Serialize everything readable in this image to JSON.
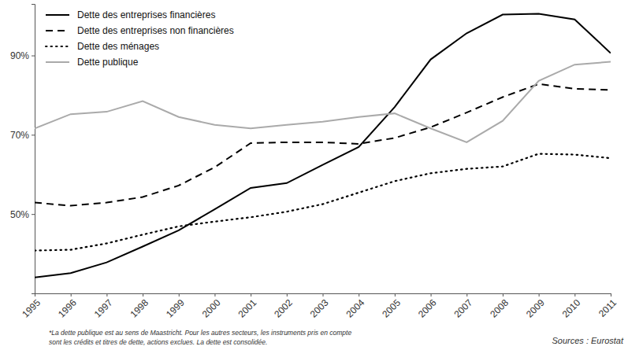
{
  "chart_data": {
    "type": "line",
    "x": [
      1995,
      1996,
      1997,
      1998,
      1999,
      2000,
      2001,
      2002,
      2003,
      2004,
      2005,
      2006,
      2007,
      2008,
      2009,
      2010,
      2011
    ],
    "xlim": [
      1995,
      2011
    ],
    "xticks": [
      1995,
      1996,
      1997,
      1998,
      1999,
      2000,
      2001,
      2002,
      2003,
      2004,
      2005,
      2006,
      2007,
      2008,
      2009,
      2010,
      2011
    ],
    "ylim": [
      30,
      103
    ],
    "yticks": [
      {
        "value": 50,
        "label": "50%"
      },
      {
        "value": 70,
        "label": "70%"
      },
      {
        "value": 90,
        "label": "90%"
      }
    ],
    "grid": false,
    "legend": "top-left",
    "series": [
      {
        "name": "Dette des entreprises financières",
        "color": "#000000",
        "line_style": "solid",
        "values": [
          34,
          35.1,
          37.8,
          41.8,
          45.9,
          51.2,
          56.6,
          57.8,
          62.4,
          66.9,
          77.0,
          89.0,
          95.6,
          100.3,
          100.5,
          99.1,
          90.6
        ]
      },
      {
        "name": "Dette des entreprises non financières",
        "color": "#000000",
        "line_style": "dashed",
        "values": [
          52.9,
          52.1,
          52.9,
          54.3,
          57.2,
          61.8,
          67.9,
          68.1,
          68.1,
          67.7,
          69.2,
          71.9,
          75.6,
          79.5,
          82.8,
          81.6,
          81.3
        ]
      },
      {
        "name": "Dette des ménages",
        "color": "#000000",
        "line_style": "dotted",
        "values": [
          40.8,
          41.0,
          42.6,
          44.8,
          46.9,
          48.1,
          49.2,
          50.6,
          52.5,
          55.4,
          58.3,
          60.3,
          61.4,
          62.0,
          65.2,
          65.0,
          64.1
        ]
      },
      {
        "name": "Dette publique",
        "color": "#aaaaaa",
        "line_style": "solid",
        "values": [
          71.6,
          75.2,
          75.8,
          78.5,
          74.5,
          72.5,
          71.6,
          72.5,
          73.3,
          74.5,
          75.4,
          71.6,
          68.1,
          73.5,
          83.6,
          87.7,
          88.4
        ]
      }
    ],
    "notes": [
      "*La dette publique est au sens de Maastricht. Pour les autres secteurs, les instruments pris en compte",
      "sont les crédits et titres de dette, actions exclues. La dette est consolidée."
    ],
    "source": "Sources : Eurostat"
  }
}
